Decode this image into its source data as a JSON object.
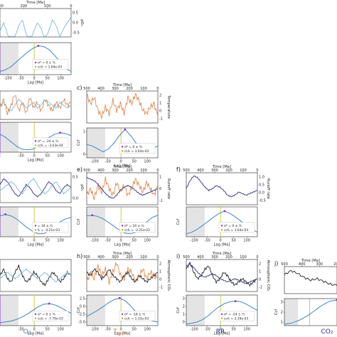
{
  "colors": {
    "O2": "#7bb6de",
    "T": "#e08a4f",
    "RR": "#2b2f8c",
    "CO2": "#222222",
    "ccf": "#3a88c4",
    "lag_line": "#8a2be2",
    "shade_pink": "#f3d7e8",
    "shade_gray": "#e4e4e4",
    "zero_line": "#b7b700"
  },
  "bottom_labels": [
    {
      "key": "O2",
      "text": "O₂",
      "color": "#4e88c8"
    },
    {
      "key": "T",
      "text": "T",
      "sub": "glob",
      "color": "#e0783a"
    },
    {
      "key": "RR",
      "text": "RR",
      "color": "#24288a"
    },
    {
      "key": "CO2",
      "text": "CO₂",
      "color": "#2b2f8c"
    }
  ],
  "chart_data": [
    {
      "panel": "a",
      "type": "line",
      "label": "",
      "top": {
        "xlabel": "Time [Ma]",
        "xticks": [
          300,
          200,
          100,
          0
        ],
        "ylabel": "pO₂",
        "yticks": [
          "0.5",
          "0.0",
          "-0.5"
        ],
        "series": [
          {
            "var": "O2",
            "values": [
              0.2,
              0.5,
              0.1,
              -0.3,
              0.0,
              0.4,
              0.6,
              0.1,
              -0.2,
              0.2,
              0.5,
              0.3,
              -0.1,
              0.2,
              0.6,
              0.4,
              0.0,
              0.3,
              0.5,
              0.7
            ]
          }
        ]
      },
      "bottom": {
        "xlabel": "Lag [Ma]",
        "xticks": [
          -100,
          -50,
          0,
          50,
          100
        ],
        "yticks": [],
        "lag": 0,
        "legend": [
          "σ* = 0 ± ⁵⁄₀",
          "ccf₀ = 1.64e-03"
        ],
        "ccf": [
          0.1,
          0.15,
          0.25,
          0.4,
          0.55,
          0.7,
          0.82,
          0.9,
          0.88,
          0.78,
          0.6,
          0.4,
          0.2,
          0.1
        ]
      }
    },
    {
      "panel": "b",
      "type": "line",
      "label": "",
      "top": {
        "xlabel": "",
        "xticks": [],
        "ylabel": "",
        "yticks": [],
        "series": [
          {
            "var": "T",
            "values": [
              0.4,
              0.7,
              0.2,
              0.5,
              0.9,
              0.3,
              0.6,
              0.2,
              0.8,
              0.4,
              0.6,
              0.3,
              0.7,
              0.5,
              0.3,
              0.6,
              0.4,
              0.7,
              0.5,
              0.6
            ]
          },
          {
            "var": "O2",
            "values": [
              0.5,
              0.6,
              0.4,
              0.3,
              0.5,
              0.7,
              0.6,
              0.4,
              0.5,
              0.6,
              0.4,
              0.5,
              0.7,
              0.6,
              0.5,
              0.4,
              0.6,
              0.5,
              0.4,
              0.5
            ]
          }
        ]
      },
      "bottom": {
        "xlabel": "Lag [Ma]",
        "xticks": [
          -50,
          0,
          50,
          100
        ],
        "yticks": [],
        "lag": -24,
        "legend": [
          "σ* = -24 ± ⁵⁄₂",
          "ccf₀ = -3.03e-04"
        ],
        "ccf": [
          0.6,
          0.5,
          0.35,
          0.2,
          0.1,
          0.08,
          0.1,
          0.2,
          0.35,
          0.5,
          0.6,
          0.65,
          0.62,
          0.55
        ]
      }
    },
    {
      "panel": "c",
      "type": "line",
      "label": "c)",
      "top": {
        "xlabel": "Time [Ma]",
        "xticks": [
          500,
          400,
          300,
          200,
          100,
          0
        ],
        "ylabel": "Temperature",
        "yticks": [
          "2",
          "1",
          "0",
          "-1"
        ],
        "series": [
          {
            "var": "T",
            "values": [
              0.9,
              0.6,
              0.8,
              0.4,
              0.2,
              0.5,
              0.3,
              0.7,
              0.4,
              0.6,
              0.3,
              0.8,
              0.6,
              0.9,
              0.7,
              0.4,
              0.3,
              0.5,
              0.6,
              0.2
            ]
          }
        ]
      },
      "bottom": {
        "xlabel": "Lag [Ma]",
        "xticks": [
          -100,
          -50,
          0,
          50,
          100
        ],
        "yticks": [
          "1",
          "0"
        ],
        "ylabel": "Ccf",
        "lag": 0,
        "legend": [
          "σ* = 0 ± ⁰⁄₀",
          "ccf₀ = 3.64e-03"
        ],
        "ccf": [
          0.45,
          0.4,
          0.3,
          0.2,
          0.3,
          0.5,
          0.75,
          0.95,
          0.75,
          0.5,
          0.3,
          0.2,
          0.3,
          0.4
        ]
      }
    },
    {
      "panel": "d",
      "type": "line",
      "label": "",
      "top": {
        "xlabel": "",
        "xticks": [],
        "ylabel": "pO₂",
        "yticks": [
          "0.5",
          "0.0"
        ],
        "series": [
          {
            "var": "RR",
            "values": [
              0.6,
              0.8,
              0.7,
              0.5,
              0.3,
              0.2,
              0.4,
              0.6,
              0.5,
              0.3,
              0.2,
              0.3,
              0.5,
              0.7,
              0.6,
              0.4,
              0.3,
              0.5,
              0.6,
              0.5
            ]
          },
          {
            "var": "O2",
            "values": [
              0.4,
              0.5,
              0.6,
              0.7,
              0.6,
              0.4,
              0.3,
              0.5,
              0.7,
              0.8,
              0.6,
              0.4,
              0.3,
              0.4,
              0.6,
              0.7,
              0.5,
              0.3,
              0.4,
              0.5
            ]
          }
        ]
      },
      "bottom": {
        "xlabel": "Lag [Ma]",
        "xticks": [
          -50,
          0,
          50,
          100
        ],
        "yticks": [],
        "lag": 24,
        "legend": [
          "= 24 ± ⁵⁄₂",
          "f₀ = -4.21e-03"
        ],
        "ccf": [
          0.7,
          0.75,
          0.7,
          0.6,
          0.45,
          0.3,
          0.18,
          0.1,
          0.1,
          0.2,
          0.35,
          0.5,
          0.6,
          0.65
        ]
      }
    },
    {
      "panel": "e",
      "type": "line",
      "label": "e)",
      "top": {
        "xlabel": "Time [Ma]",
        "xticks": [
          500,
          400,
          300,
          200,
          100,
          0
        ],
        "ylabel": "Runoff rate",
        "yticks": [
          "1",
          "0",
          "-1"
        ],
        "series": [
          {
            "var": "T",
            "values": [
              0.3,
              0.5,
              0.2,
              0.6,
              0.4,
              0.8,
              0.5,
              0.3,
              0.7,
              0.4,
              0.6,
              0.3,
              0.5,
              0.8,
              0.6,
              0.4,
              0.7,
              0.5,
              0.3,
              0.6
            ]
          },
          {
            "var": "RR",
            "values": [
              0.85,
              0.8,
              0.75,
              0.65,
              0.5,
              0.35,
              0.25,
              0.2,
              0.3,
              0.45,
              0.55,
              0.6,
              0.55,
              0.45,
              0.35,
              0.3,
              0.35,
              0.4,
              0.45,
              0.5
            ]
          }
        ]
      },
      "bottom": {
        "xlabel": "Lag [Ma]",
        "xticks": [
          -100,
          -50,
          0,
          50,
          100
        ],
        "yticks": [],
        "ylabel": "Ccf",
        "lag": 24,
        "legend": [
          "σ* = 24 ± ⁵⁄₀",
          "ccf₀ = -2.21e-03"
        ],
        "ccf": [
          0.7,
          0.72,
          0.68,
          0.6,
          0.48,
          0.35,
          0.22,
          0.12,
          0.1,
          0.15,
          0.3,
          0.5,
          0.65,
          0.72
        ]
      }
    },
    {
      "panel": "f",
      "type": "line",
      "label": "f)",
      "top": {
        "xlabel": "Time [Ma]",
        "xticks": [
          500,
          400,
          300,
          200,
          100,
          0
        ],
        "ylabel": "Runoff rate",
        "yticks": [
          "1.0",
          "0.5",
          "0.0",
          "-0.5"
        ],
        "series": [
          {
            "var": "RR",
            "values": [
              0.5,
              0.75,
              0.9,
              0.85,
              0.7,
              0.55,
              0.45,
              0.5,
              0.6,
              0.55,
              0.45,
              0.3,
              0.25,
              0.3,
              0.4,
              0.35,
              0.3,
              0.35,
              0.4,
              0.45
            ]
          }
        ]
      },
      "bottom": {
        "xlabel": "Lag [Ma]",
        "xticks": [
          -100,
          -50,
          0,
          50,
          100
        ],
        "yticks": [],
        "ylabel": "Ccf",
        "lag": 0,
        "legend": [
          "σ* = 0 ± ⁰⁄₀",
          "ccf₀ = 3.64e-03"
        ],
        "ccf": [
          0.1,
          0.15,
          0.25,
          0.38,
          0.52,
          0.66,
          0.78,
          0.86,
          0.78,
          0.66,
          0.52,
          0.38,
          0.25,
          0.15
        ]
      }
    },
    {
      "panel": "g",
      "type": "line",
      "label": "",
      "top": {
        "xlabel": "",
        "xticks": [],
        "ylabel": "",
        "yticks": [],
        "series": [
          {
            "var": "CO2",
            "values": [
              0.5,
              0.7,
              0.4,
              0.3,
              0.6,
              0.8,
              0.5,
              0.3,
              0.4,
              0.6,
              0.5,
              0.3,
              0.2,
              0.4,
              0.6,
              0.5,
              0.3,
              0.4,
              0.6,
              0.5
            ]
          },
          {
            "var": "O2",
            "values": [
              0.4,
              0.5,
              0.6,
              0.5,
              0.4,
              0.5,
              0.6,
              0.7,
              0.6,
              0.5,
              0.4,
              0.5,
              0.6,
              0.5,
              0.4,
              0.3,
              0.4,
              0.5,
              0.6,
              0.5
            ]
          }
        ]
      },
      "bottom": {
        "xlabel": "Lag [Ma]",
        "xticks": [
          -50,
          0,
          50,
          100
        ],
        "yticks": [],
        "lag": 0,
        "legend": [
          "σ* = 0 ± ⁵⁄₀",
          "ccf₀ = -7.79e-03"
        ],
        "ccf": [
          0.1,
          0.12,
          0.15,
          0.2,
          0.28,
          0.38,
          0.5,
          0.62,
          0.7,
          0.72,
          0.68,
          0.6,
          0.5,
          0.4
        ]
      }
    },
    {
      "panel": "h",
      "type": "line",
      "label": "h)",
      "top": {
        "xlabel": "Time [Ma]",
        "xticks": [
          500,
          400,
          300,
          200,
          100,
          0
        ],
        "ylabel": "Atmospheric CO₂",
        "yticks": [
          "2",
          "1",
          "0",
          "-1"
        ],
        "series": [
          {
            "var": "T",
            "values": [
              0.3,
              0.6,
              0.4,
              0.8,
              0.5,
              0.7,
              0.3,
              0.6,
              0.9,
              0.5,
              0.4,
              0.7,
              0.6,
              0.3,
              0.5,
              0.7,
              0.4,
              0.6,
              0.5,
              0.4
            ]
          },
          {
            "var": "CO2",
            "values": [
              0.6,
              0.5,
              0.7,
              0.6,
              0.4,
              0.5,
              0.7,
              0.5,
              0.4,
              0.3,
              0.5,
              0.6,
              0.4,
              0.3,
              0.5,
              0.4,
              0.3,
              0.4,
              0.5,
              0.6
            ]
          }
        ]
      },
      "bottom": {
        "xlabel": "Lag [Ma]",
        "xticks": [
          -100,
          -50,
          0,
          50,
          100
        ],
        "yticks": [
          "2.5",
          "0.0",
          "-2.5",
          "-5.0"
        ],
        "ylabel": "Ccf",
        "lag": -18,
        "legend": [
          "σ* = -18 ± ¹⁄₂",
          "ccf₀ = 1.33e-03"
        ],
        "ccf": [
          0.3,
          0.4,
          0.5,
          0.62,
          0.75,
          0.85,
          0.9,
          0.82,
          0.65,
          0.45,
          0.3,
          0.2,
          0.15,
          0.12
        ]
      }
    },
    {
      "panel": "i",
      "type": "line",
      "label": "i)",
      "top": {
        "xlabel": "Time [Ma]",
        "xticks": [
          500,
          400,
          300,
          200,
          100,
          0
        ],
        "ylabel": "Atmospheric CO₂",
        "yticks": [
          "2",
          "1",
          "0",
          "-1"
        ],
        "series": [
          {
            "var": "CO2",
            "values": [
              0.7,
              0.9,
              0.6,
              0.4,
              0.5,
              0.7,
              0.8,
              0.5,
              0.3,
              0.4,
              0.6,
              0.5,
              0.3,
              0.2,
              0.3,
              0.4,
              0.3,
              0.2,
              0.3,
              0.4
            ]
          },
          {
            "var": "RR",
            "values": [
              0.8,
              0.85,
              0.75,
              0.6,
              0.5,
              0.45,
              0.5,
              0.55,
              0.5,
              0.4,
              0.35,
              0.3,
              0.35,
              0.4,
              0.35,
              0.3,
              0.25,
              0.3,
              0.35,
              0.4
            ]
          }
        ]
      },
      "bottom": {
        "xlabel": "Lag [Ma]",
        "xticks": [
          -100,
          -50,
          0,
          50,
          100
        ],
        "yticks": [
          "3",
          "2",
          "1",
          "0"
        ],
        "ylabel": "Ccf",
        "lag": -24,
        "legend": [
          "σ* = -24 ± ⁵⁄₂",
          "ccf₀ = 3.39e-03"
        ],
        "ccf": [
          0.05,
          0.08,
          0.12,
          0.2,
          0.32,
          0.48,
          0.62,
          0.72,
          0.78,
          0.8,
          0.78,
          0.7,
          0.6,
          0.5
        ]
      }
    },
    {
      "panel": "j",
      "type": "line",
      "label": "j)",
      "top": {
        "xlabel": "Time [Ma]",
        "xticks": [
          500,
          400,
          300,
          200
        ],
        "ylabel": "",
        "yticks": [],
        "series": [
          {
            "var": "CO2",
            "values": [
              0.7,
              0.85,
              0.75,
              0.6,
              0.5,
              0.55,
              0.45,
              0.35,
              0.3
            ]
          }
        ]
      },
      "bottom": {
        "xlabel": "",
        "xticks": [],
        "yticks": [
          "3",
          "2",
          "1"
        ],
        "ylabel": "Ccf",
        "lag": 0,
        "legend": [],
        "ccf": [
          0.05,
          0.1,
          0.2,
          0.35,
          0.55,
          0.75,
          0.9,
          0.95
        ]
      }
    }
  ]
}
